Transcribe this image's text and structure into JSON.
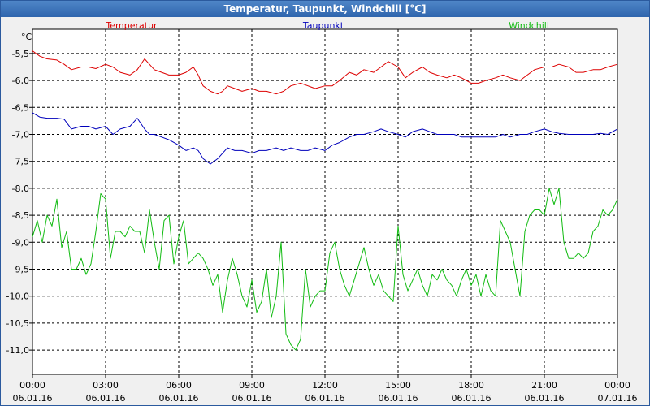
{
  "window": {
    "title": "Temperatur, Taupunkt, Windchill [°C]"
  },
  "chart_data": {
    "type": "line",
    "title": "Temperatur, Taupunkt, Windchill [°C]",
    "ylabel": "°C",
    "xlabel": "",
    "ylim": [
      -11.5,
      -5.0
    ],
    "xlim": [
      0,
      24
    ],
    "grid": true,
    "y_ticks": [
      {
        "v": -5.5,
        "label": "-5,5"
      },
      {
        "v": -6.0,
        "label": "-6,0"
      },
      {
        "v": -6.5,
        "label": "-6,5"
      },
      {
        "v": -7.0,
        "label": "-7,0"
      },
      {
        "v": -7.5,
        "label": "-7,5"
      },
      {
        "v": -8.0,
        "label": "-8,0"
      },
      {
        "v": -8.5,
        "label": "-8,5"
      },
      {
        "v": -9.0,
        "label": "-9,0"
      },
      {
        "v": -9.5,
        "label": "-9,5"
      },
      {
        "v": -10.0,
        "label": "-10,0"
      },
      {
        "v": -10.5,
        "label": "-10,5"
      },
      {
        "v": -11.0,
        "label": "-11,0"
      }
    ],
    "x_ticks": [
      {
        "v": 0,
        "time": "00:00",
        "date": "06.01.16"
      },
      {
        "v": 3,
        "time": "03:00",
        "date": "06.01.16"
      },
      {
        "v": 6,
        "time": "06:00",
        "date": "06.01.16"
      },
      {
        "v": 9,
        "time": "09:00",
        "date": "06.01.16"
      },
      {
        "v": 12,
        "time": "12:00",
        "date": "06.01.16"
      },
      {
        "v": 15,
        "time": "15:00",
        "date": "06.01.16"
      },
      {
        "v": 18,
        "time": "18:00",
        "date": "06.01.16"
      },
      {
        "v": 21,
        "time": "21:00",
        "date": "06.01.16"
      },
      {
        "v": 24,
        "time": "00:00",
        "date": "07.01.16"
      }
    ],
    "series": [
      {
        "name": "Temperatur",
        "color": "#dd0000",
        "legend_pos": "left",
        "x": [
          0,
          0.3,
          0.6,
          1,
          1.3,
          1.6,
          2,
          2.3,
          2.6,
          3,
          3.3,
          3.6,
          4,
          4.3,
          4.6,
          4.8,
          5,
          5.3,
          5.6,
          6,
          6.3,
          6.6,
          6.8,
          7,
          7.3,
          7.6,
          7.8,
          8,
          8.3,
          8.6,
          9,
          9.3,
          9.6,
          10,
          10.3,
          10.6,
          11,
          11.3,
          11.6,
          12,
          12.3,
          12.6,
          13,
          13.3,
          13.6,
          14,
          14.3,
          14.6,
          15,
          15.3,
          15.6,
          16,
          16.3,
          16.6,
          17,
          17.3,
          17.6,
          18,
          18.3,
          18.6,
          19,
          19.3,
          19.6,
          20,
          20.3,
          20.6,
          21,
          21.3,
          21.6,
          22,
          22.3,
          22.6,
          23,
          23.3,
          23.6,
          24
        ],
        "y": [
          -5.45,
          -5.55,
          -5.6,
          -5.62,
          -5.7,
          -5.8,
          -5.75,
          -5.75,
          -5.78,
          -5.7,
          -5.75,
          -5.85,
          -5.9,
          -5.8,
          -5.6,
          -5.7,
          -5.8,
          -5.85,
          -5.9,
          -5.9,
          -5.85,
          -5.75,
          -5.9,
          -6.1,
          -6.2,
          -6.25,
          -6.2,
          -6.1,
          -6.15,
          -6.2,
          -6.15,
          -6.2,
          -6.2,
          -6.25,
          -6.2,
          -6.1,
          -6.05,
          -6.1,
          -6.15,
          -6.1,
          -6.1,
          -6.0,
          -5.85,
          -5.9,
          -5.8,
          -5.85,
          -5.75,
          -5.65,
          -5.75,
          -5.95,
          -5.85,
          -5.75,
          -5.85,
          -5.9,
          -5.95,
          -5.9,
          -5.95,
          -6.05,
          -6.05,
          -6.0,
          -5.95,
          -5.9,
          -5.95,
          -6.0,
          -5.9,
          -5.8,
          -5.75,
          -5.75,
          -5.7,
          -5.75,
          -5.85,
          -5.85,
          -5.8,
          -5.8,
          -5.75,
          -5.7
        ]
      },
      {
        "name": "Taupunkt",
        "color": "#0000bb",
        "legend_pos": "center",
        "x": [
          0,
          0.3,
          0.6,
          1,
          1.3,
          1.6,
          2,
          2.3,
          2.6,
          3,
          3.3,
          3.6,
          4,
          4.3,
          4.6,
          4.8,
          5,
          5.3,
          5.6,
          6,
          6.3,
          6.6,
          6.8,
          7,
          7.3,
          7.6,
          7.8,
          8,
          8.3,
          8.6,
          9,
          9.3,
          9.6,
          10,
          10.3,
          10.6,
          11,
          11.3,
          11.6,
          12,
          12.3,
          12.6,
          13,
          13.3,
          13.6,
          14,
          14.3,
          14.6,
          15,
          15.3,
          15.6,
          16,
          16.3,
          16.6,
          17,
          17.3,
          17.6,
          18,
          18.3,
          18.6,
          19,
          19.3,
          19.6,
          20,
          20.3,
          20.6,
          21,
          21.3,
          21.6,
          22,
          22.3,
          22.6,
          23,
          23.3,
          23.6,
          24
        ],
        "y": [
          -6.6,
          -6.68,
          -6.7,
          -6.7,
          -6.72,
          -6.9,
          -6.85,
          -6.85,
          -6.9,
          -6.85,
          -7.0,
          -6.9,
          -6.85,
          -6.7,
          -6.9,
          -7.0,
          -7.0,
          -7.05,
          -7.1,
          -7.2,
          -7.3,
          -7.25,
          -7.3,
          -7.45,
          -7.55,
          -7.45,
          -7.35,
          -7.25,
          -7.3,
          -7.3,
          -7.35,
          -7.3,
          -7.3,
          -7.25,
          -7.3,
          -7.25,
          -7.3,
          -7.3,
          -7.25,
          -7.3,
          -7.2,
          -7.15,
          -7.05,
          -7.0,
          -7.0,
          -6.95,
          -6.9,
          -6.95,
          -7.0,
          -7.05,
          -6.95,
          -6.9,
          -6.95,
          -7.0,
          -7.0,
          -7.0,
          -7.05,
          -7.05,
          -7.05,
          -7.05,
          -7.05,
          -7.0,
          -7.05,
          -7.0,
          -7.0,
          -6.95,
          -6.9,
          -6.95,
          -6.98,
          -7.0,
          -7.0,
          -7.0,
          -7.0,
          -6.98,
          -7.0,
          -6.9
        ]
      },
      {
        "name": "Windchill",
        "color": "#11bb11",
        "legend_pos": "right",
        "x": [
          0,
          0.2,
          0.4,
          0.6,
          0.8,
          1,
          1.2,
          1.4,
          1.6,
          1.8,
          2,
          2.2,
          2.4,
          2.6,
          2.8,
          3,
          3.2,
          3.4,
          3.6,
          3.8,
          4,
          4.2,
          4.4,
          4.6,
          4.8,
          5,
          5.2,
          5.4,
          5.6,
          5.8,
          6,
          6.2,
          6.4,
          6.6,
          6.8,
          7,
          7.2,
          7.4,
          7.6,
          7.8,
          8,
          8.2,
          8.4,
          8.6,
          8.8,
          9,
          9.2,
          9.4,
          9.6,
          9.8,
          10,
          10.2,
          10.4,
          10.6,
          10.8,
          11,
          11.2,
          11.4,
          11.6,
          11.8,
          12,
          12.2,
          12.4,
          12.6,
          12.8,
          13,
          13.2,
          13.4,
          13.6,
          13.8,
          14,
          14.2,
          14.4,
          14.6,
          14.8,
          15,
          15.2,
          15.4,
          15.6,
          15.8,
          16,
          16.2,
          16.4,
          16.6,
          16.8,
          17,
          17.2,
          17.4,
          17.6,
          17.8,
          18,
          18.2,
          18.4,
          18.6,
          18.8,
          19,
          19.2,
          19.4,
          19.6,
          19.8,
          20,
          20.2,
          20.4,
          20.6,
          20.8,
          21,
          21.2,
          21.4,
          21.6,
          21.8,
          22,
          22.2,
          22.4,
          22.6,
          22.8,
          23,
          23.2,
          23.4,
          23.6,
          23.8,
          24
        ],
        "y": [
          -8.9,
          -8.6,
          -9.0,
          -8.5,
          -8.7,
          -8.2,
          -9.1,
          -8.8,
          -9.5,
          -9.5,
          -9.3,
          -9.6,
          -9.4,
          -8.8,
          -8.1,
          -8.2,
          -9.3,
          -8.8,
          -8.8,
          -8.9,
          -8.7,
          -8.8,
          -8.8,
          -9.2,
          -8.4,
          -9.0,
          -9.5,
          -8.6,
          -8.5,
          -9.4,
          -8.9,
          -8.6,
          -9.4,
          -9.3,
          -9.2,
          -9.3,
          -9.5,
          -9.8,
          -9.6,
          -10.3,
          -9.7,
          -9.3,
          -9.6,
          -10.0,
          -10.2,
          -9.7,
          -10.3,
          -10.1,
          -9.5,
          -10.4,
          -10.0,
          -9.0,
          -10.7,
          -10.9,
          -11.0,
          -10.8,
          -9.5,
          -10.2,
          -10.0,
          -9.9,
          -9.9,
          -9.2,
          -9.0,
          -9.5,
          -9.8,
          -10.0,
          -9.7,
          -9.4,
          -9.1,
          -9.5,
          -9.8,
          -9.6,
          -9.9,
          -10.0,
          -10.1,
          -8.7,
          -9.6,
          -9.9,
          -9.7,
          -9.5,
          -9.8,
          -10.0,
          -9.6,
          -9.7,
          -9.5,
          -9.7,
          -9.8,
          -10.0,
          -9.7,
          -9.5,
          -9.8,
          -9.6,
          -10.0,
          -9.6,
          -9.9,
          -10.0,
          -8.6,
          -8.8,
          -9.0,
          -9.5,
          -10.0,
          -8.8,
          -8.5,
          -8.4,
          -8.4,
          -8.5,
          -8.0,
          -8.3,
          -8.0,
          -9.0,
          -9.3,
          -9.3,
          -9.2,
          -9.3,
          -9.2,
          -8.8,
          -8.7,
          -8.4,
          -8.5,
          -8.4,
          -8.2
        ]
      }
    ]
  }
}
